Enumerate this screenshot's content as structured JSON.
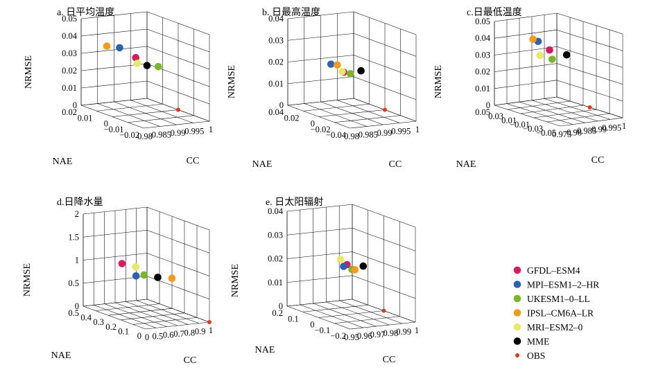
{
  "chart_data": [
    {
      "type": "scatter3d",
      "title": "a. 日平均温度",
      "xlabel": "CC",
      "ylabel": "NAE",
      "zlabel": "NRMSE",
      "x_ticks": [
        "0.98",
        "0.985",
        "0.99",
        "0.995",
        "1"
      ],
      "y_ticks": [
        "−0.02",
        "−0.01",
        "0",
        "0.01",
        "0.02"
      ],
      "z_ticks": [
        "0",
        "0.01",
        "0.02",
        "0.03",
        "0.04",
        "0.05"
      ],
      "xlim": [
        0.98,
        1
      ],
      "ylim": [
        -0.02,
        0.02
      ],
      "zlim": [
        0,
        0.05
      ],
      "points": [
        {
          "model": "GFDL–ESM4",
          "cc": 0.989,
          "nae": 0.004,
          "nrmse": 0.031
        },
        {
          "model": "MPI–ESM1–2–HR",
          "cc": 0.986,
          "nae": 0.008,
          "nrmse": 0.036
        },
        {
          "model": "UKESM1–0–LL",
          "cc": 0.993,
          "nae": -0.002,
          "nrmse": 0.027
        },
        {
          "model": "IPSL–CM6A–LR",
          "cc": 0.984,
          "nae": 0.012,
          "nrmse": 0.036
        },
        {
          "model": "MRI–ESM2–0",
          "cc": 0.989,
          "nae": 0.003,
          "nrmse": 0.028
        },
        {
          "model": "MME",
          "cc": 0.991,
          "nae": 0.001,
          "nrmse": 0.027
        },
        {
          "model": "OBS",
          "cc": 1,
          "nae": 0,
          "nrmse": 0
        }
      ]
    },
    {
      "type": "scatter3d",
      "title": "b. 日最高温度",
      "xlabel": "CC",
      "ylabel": "NAE",
      "zlabel": "NRMSE",
      "x_ticks": [
        "0.98",
        "0.985",
        "0.99",
        "0.995",
        "1"
      ],
      "y_ticks": [
        "−0.04",
        "−0.02",
        "0",
        "0.02",
        "0.04"
      ],
      "z_ticks": [
        "0",
        "0.01",
        "0.02",
        "0.03",
        "0.04"
      ],
      "xlim": [
        0.98,
        1
      ],
      "ylim": [
        -0.04,
        0.04
      ],
      "zlim": [
        0,
        0.04
      ],
      "points": [
        {
          "model": "GFDL–ESM4",
          "cc": 0.988,
          "nae": 0.002,
          "nrmse": 0.019
        },
        {
          "model": "MPI–ESM1–2–HR",
          "cc": 0.986,
          "nae": 0.01,
          "nrmse": 0.022
        },
        {
          "model": "UKESM1–0–LL",
          "cc": 0.99,
          "nae": 0.002,
          "nrmse": 0.018
        },
        {
          "model": "IPSL–CM6A–LR",
          "cc": 0.987,
          "nae": 0.006,
          "nrmse": 0.022
        },
        {
          "model": "MRI–ESM2–0",
          "cc": 0.988,
          "nae": 0.004,
          "nrmse": 0.019
        },
        {
          "model": "MME",
          "cc": 0.993,
          "nae": 0.001,
          "nrmse": 0.019
        },
        {
          "model": "OBS",
          "cc": 1,
          "nae": 0,
          "nrmse": 0
        }
      ]
    },
    {
      "type": "scatter3d",
      "title": "c.日最低温度",
      "xlabel": "CC",
      "ylabel": "NAE",
      "zlabel": "NRMSE",
      "x_ticks": [
        "0.975",
        "0.98",
        "0.985",
        "0.99",
        "0.995",
        "1"
      ],
      "y_ticks": [
        "−0.05",
        "−0.03",
        "−0.01",
        "0.01",
        "0.03",
        "0.05"
      ],
      "z_ticks": [
        "0",
        "0.01",
        "0.02",
        "0.03",
        "0.04",
        "0.05"
      ],
      "xlim": [
        0.975,
        1
      ],
      "ylim": [
        -0.05,
        0.05
      ],
      "zlim": [
        0,
        0.05
      ],
      "points": [
        {
          "model": "GFDL–ESM4",
          "cc": 0.986,
          "nae": 0.008,
          "nrmse": 0.036
        },
        {
          "model": "MPI–ESM1–2–HR",
          "cc": 0.983,
          "nae": 0.014,
          "nrmse": 0.041
        },
        {
          "model": "UKESM1–0–LL",
          "cc": 0.986,
          "nae": 0.004,
          "nrmse": 0.031
        },
        {
          "model": "IPSL–CM6A–LR",
          "cc": 0.982,
          "nae": 0.018,
          "nrmse": 0.042
        },
        {
          "model": "MRI–ESM2–0",
          "cc": 0.983,
          "nae": 0.011,
          "nrmse": 0.033
        },
        {
          "model": "MME",
          "cc": 0.991,
          "nae": 0.001,
          "nrmse": 0.033
        },
        {
          "model": "OBS",
          "cc": 1,
          "nae": 0,
          "nrmse": 0
        }
      ]
    },
    {
      "type": "scatter3d",
      "title": "d.日降水量",
      "xlabel": "CC",
      "ylabel": "NAE",
      "zlabel": "NRMSE",
      "x_ticks": [
        "0",
        "0.5",
        "0.6",
        "0.7",
        "0.8",
        "0.9",
        "1"
      ],
      "y_ticks": [
        "0",
        "0.1",
        "0.2",
        "0.3",
        "0.4",
        "0.5"
      ],
      "z_ticks": [
        "0",
        "0.5",
        "1",
        "1.5",
        "2"
      ],
      "xlim": [
        0.4,
        1
      ],
      "ylim": [
        0,
        0.5
      ],
      "zlim": [
        0,
        2
      ],
      "points": [
        {
          "model": "GFDL–ESM4",
          "cc": 0.53,
          "nae": 0.3,
          "nrmse": 1.09
        },
        {
          "model": "MPI–ESM1–2–HR",
          "cc": 0.58,
          "nae": 0.23,
          "nrmse": 0.88
        },
        {
          "model": "UKESM1–0–LL",
          "cc": 0.62,
          "nae": 0.2,
          "nrmse": 0.92
        },
        {
          "model": "IPSL–CM6A–LR",
          "cc": 0.73,
          "nae": 0.07,
          "nrmse": 0.95
        },
        {
          "model": "MRI–ESM2–0",
          "cc": 0.6,
          "nae": 0.25,
          "nrmse": 1.05
        },
        {
          "model": "MME",
          "cc": 0.69,
          "nae": 0.15,
          "nrmse": 0.9
        },
        {
          "model": "OBS",
          "cc": 1,
          "nae": 0,
          "nrmse": 0
        }
      ]
    },
    {
      "type": "scatter3d",
      "title": "e. 日太阳辐射",
      "xlabel": "CC",
      "ylabel": "NAE",
      "zlabel": "NRMSE",
      "x_ticks": [
        "0.95",
        "0.96",
        "0.97",
        "0.98",
        "0.99",
        "1"
      ],
      "y_ticks": [
        "−0.2",
        "−0.1",
        "0",
        "0.1",
        "0.2"
      ],
      "z_ticks": [
        "0",
        "0.01",
        "0.02",
        "0.03",
        "0.04"
      ],
      "xlim": [
        0.95,
        1
      ],
      "ylim": [
        -0.2,
        0.2
      ],
      "zlim": [
        0,
        0.04
      ],
      "points": [
        {
          "model": "GFDL–ESM4",
          "cc": 0.972,
          "nae": 0.002,
          "nrmse": 0.021
        },
        {
          "model": "MPI–ESM1–2–HR",
          "cc": 0.971,
          "nae": 0.015,
          "nrmse": 0.02
        },
        {
          "model": "UKESM1–0–LL",
          "cc": 0.975,
          "nae": -0.005,
          "nrmse": 0.019
        },
        {
          "model": "IPSL–CM6A–LR",
          "cc": 0.976,
          "nae": -0.015,
          "nrmse": 0.019
        },
        {
          "model": "MRI–ESM2–0",
          "cc": 0.969,
          "nae": 0.018,
          "nrmse": 0.023
        },
        {
          "model": "MME",
          "cc": 0.983,
          "nae": -0.01,
          "nrmse": 0.02
        },
        {
          "model": "OBS",
          "cc": 1,
          "nae": 0,
          "nrmse": 0
        }
      ]
    }
  ],
  "legend": {
    "items": [
      {
        "label": "GFDL–ESM4",
        "color": "#d81b5f",
        "marker": "large"
      },
      {
        "label": "MPI–ESM1–2–HR",
        "color": "#2b62b2",
        "marker": "large"
      },
      {
        "label": "UKESM1–0–LL",
        "color": "#7ab52a",
        "marker": "large"
      },
      {
        "label": "IPSL–CM6A–LR",
        "color": "#f29b1e",
        "marker": "large"
      },
      {
        "label": "MRI–ESM2–0",
        "color": "#e8e86a",
        "marker": "large"
      },
      {
        "label": "MME",
        "color": "#000000",
        "marker": "large"
      },
      {
        "label": "OBS",
        "color": "#e03a1c",
        "marker": "small"
      }
    ]
  }
}
